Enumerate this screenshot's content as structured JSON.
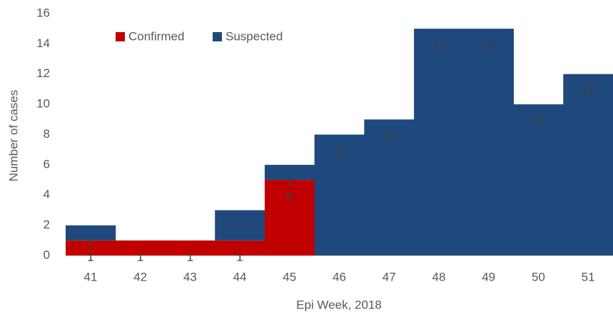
{
  "chart_data": {
    "type": "stacked_bar",
    "x_label": "Epi Week, 2018",
    "y_label": "Number of cases",
    "categories": [
      "41",
      "42",
      "43",
      "44",
      "45",
      "46",
      "47",
      "48",
      "49",
      "50",
      "51"
    ],
    "series": [
      {
        "name": "Confirmed",
        "color": "#c00000",
        "values": [
          1,
          1,
          1,
          1,
          5,
          0,
          0,
          0,
          0,
          0,
          0
        ]
      },
      {
        "name": "Suspected",
        "color": "#1f497d",
        "values": [
          1,
          0,
          0,
          2,
          1,
          8,
          9,
          15,
          15,
          10,
          12
        ]
      }
    ],
    "ylim": [
      0,
      16
    ],
    "yticks": [
      0,
      2,
      4,
      6,
      8,
      10,
      12,
      14,
      16
    ],
    "legend": "top",
    "grid": false
  }
}
